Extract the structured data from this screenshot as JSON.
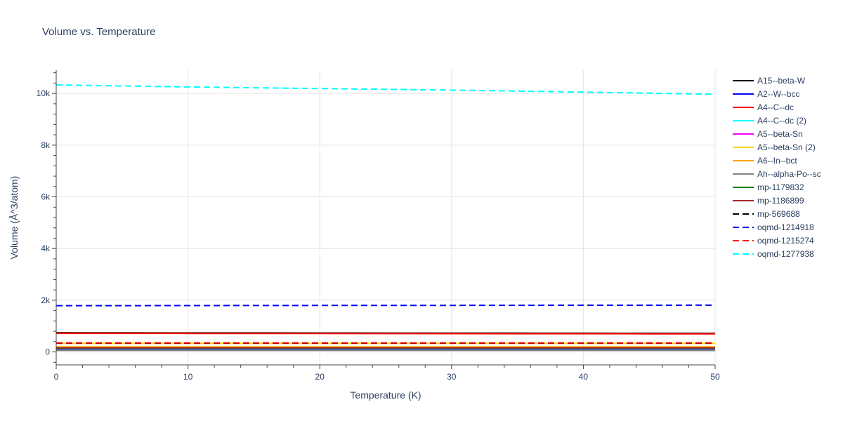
{
  "chart_data": {
    "type": "line",
    "title": "Volume vs. Temperature",
    "xlabel": "Temperature (K)",
    "ylabel": "Volume (Å^3/atom)",
    "xlim": [
      0,
      50
    ],
    "ylim": [
      -500,
      10900
    ],
    "x_ticks": [
      0,
      10,
      20,
      30,
      40,
      50
    ],
    "x_tick_labels": [
      "0",
      "10",
      "20",
      "30",
      "40",
      "50"
    ],
    "y_ticks": [
      0,
      2000,
      4000,
      6000,
      8000,
      10000
    ],
    "y_tick_labels": [
      "0",
      "2k",
      "4k",
      "6k",
      "8k",
      "10k"
    ],
    "grid": true,
    "legend_position": "right",
    "x": [
      0,
      5,
      10,
      15,
      20,
      25,
      30,
      35,
      40,
      45,
      50
    ],
    "series": [
      {
        "name": "A15--beta-W",
        "color": "#000000",
        "dash": "solid",
        "values": [
          740,
          738,
          736,
          734,
          732,
          730,
          728,
          726,
          724,
          722,
          720
        ]
      },
      {
        "name": "A2--W--bcc",
        "color": "#0000ff",
        "dash": "solid",
        "values": [
          120,
          120,
          120,
          120,
          120,
          120,
          120,
          120,
          120,
          120,
          120
        ]
      },
      {
        "name": "A4--C--dc",
        "color": "#ff0000",
        "dash": "solid",
        "values": [
          720,
          718,
          716,
          714,
          712,
          710,
          708,
          706,
          704,
          702,
          700
        ]
      },
      {
        "name": "A4--C--dc (2)",
        "color": "#00ffff",
        "dash": "solid",
        "values": [
          150,
          150,
          150,
          150,
          150,
          150,
          150,
          150,
          150,
          150,
          150
        ]
      },
      {
        "name": "A5--beta-Sn",
        "color": "#ff00ff",
        "dash": "solid",
        "values": [
          180,
          180,
          180,
          180,
          180,
          180,
          180,
          180,
          180,
          180,
          180
        ]
      },
      {
        "name": "A5--beta-Sn (2)",
        "color": "#ffd700",
        "dash": "solid",
        "values": [
          330,
          330,
          330,
          330,
          330,
          330,
          330,
          330,
          330,
          330,
          330
        ]
      },
      {
        "name": "A6--In--bct",
        "color": "#ffa500",
        "dash": "solid",
        "values": [
          200,
          200,
          200,
          200,
          200,
          200,
          200,
          200,
          200,
          200,
          200
        ]
      },
      {
        "name": "Ah--alpha-Po--sc",
        "color": "#808080",
        "dash": "solid",
        "values": [
          60,
          60,
          60,
          60,
          60,
          60,
          60,
          60,
          60,
          60,
          60
        ]
      },
      {
        "name": "mp-1179832",
        "color": "#008000",
        "dash": "solid",
        "values": [
          140,
          140,
          140,
          140,
          140,
          140,
          140,
          140,
          140,
          140,
          140
        ]
      },
      {
        "name": "mp-1186899",
        "color": "#a52a2a",
        "dash": "solid",
        "values": [
          160,
          160,
          160,
          160,
          160,
          160,
          160,
          160,
          160,
          160,
          160
        ]
      },
      {
        "name": "mp-569688",
        "color": "#000000",
        "dash": "dash",
        "values": [
          340,
          340,
          340,
          340,
          340,
          340,
          340,
          340,
          340,
          340,
          340
        ]
      },
      {
        "name": "oqmd-1214918",
        "color": "#0000ff",
        "dash": "dash",
        "values": [
          1790,
          1792,
          1794,
          1796,
          1798,
          1800,
          1802,
          1804,
          1806,
          1808,
          1810
        ]
      },
      {
        "name": "oqmd-1215274",
        "color": "#ff0000",
        "dash": "dash",
        "values": [
          350,
          350,
          350,
          350,
          350,
          350,
          350,
          350,
          350,
          350,
          350
        ]
      },
      {
        "name": "oqmd-1277938",
        "color": "#00ffff",
        "dash": "dash",
        "values": [
          10330,
          10290,
          10250,
          10220,
          10190,
          10160,
          10130,
          10090,
          10050,
          10010,
          9970
        ]
      }
    ]
  }
}
